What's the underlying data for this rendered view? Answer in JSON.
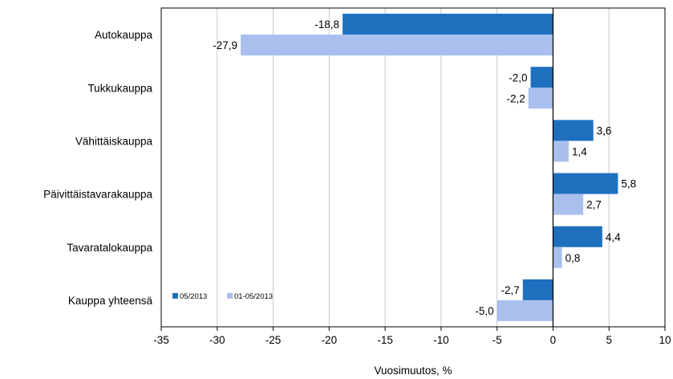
{
  "chart_data": {
    "type": "bar",
    "orientation": "horizontal",
    "categories": [
      "Autokauppa",
      "Tukkukauppa",
      "Vähittäiskauppa",
      "Päivittäistavarakauppa",
      "Tavaratalokauppa",
      "Kauppa yhteensä"
    ],
    "series": [
      {
        "name": "05/2013",
        "color": "#1f6fbf",
        "values": [
          -18.8,
          -2.0,
          3.6,
          5.8,
          4.4,
          -2.7
        ],
        "labels": [
          "-18,8",
          "-2,0",
          "3,6",
          "5,8",
          "4,4",
          "-2,7"
        ]
      },
      {
        "name": "01-05/2013",
        "color": "#a9c0ee",
        "values": [
          -27.9,
          -2.2,
          1.4,
          2.7,
          0.8,
          -5.0
        ],
        "labels": [
          "-27,9",
          "-2,2",
          "1,4",
          "2,7",
          "0,8",
          "-5,0"
        ]
      }
    ],
    "xlabel": "Vuosimuutos, %",
    "ylabel": "",
    "xlim": [
      -35,
      10
    ],
    "xticks": [
      -35,
      -30,
      -25,
      -20,
      -15,
      -10,
      -5,
      0,
      5,
      10
    ],
    "xtick_labels": [
      "-35",
      "-30",
      "-25",
      "-20",
      "-15",
      "-10",
      "-5",
      "0",
      "5",
      "10"
    ],
    "grid": "vertical",
    "legend_position": "bottom-left"
  }
}
